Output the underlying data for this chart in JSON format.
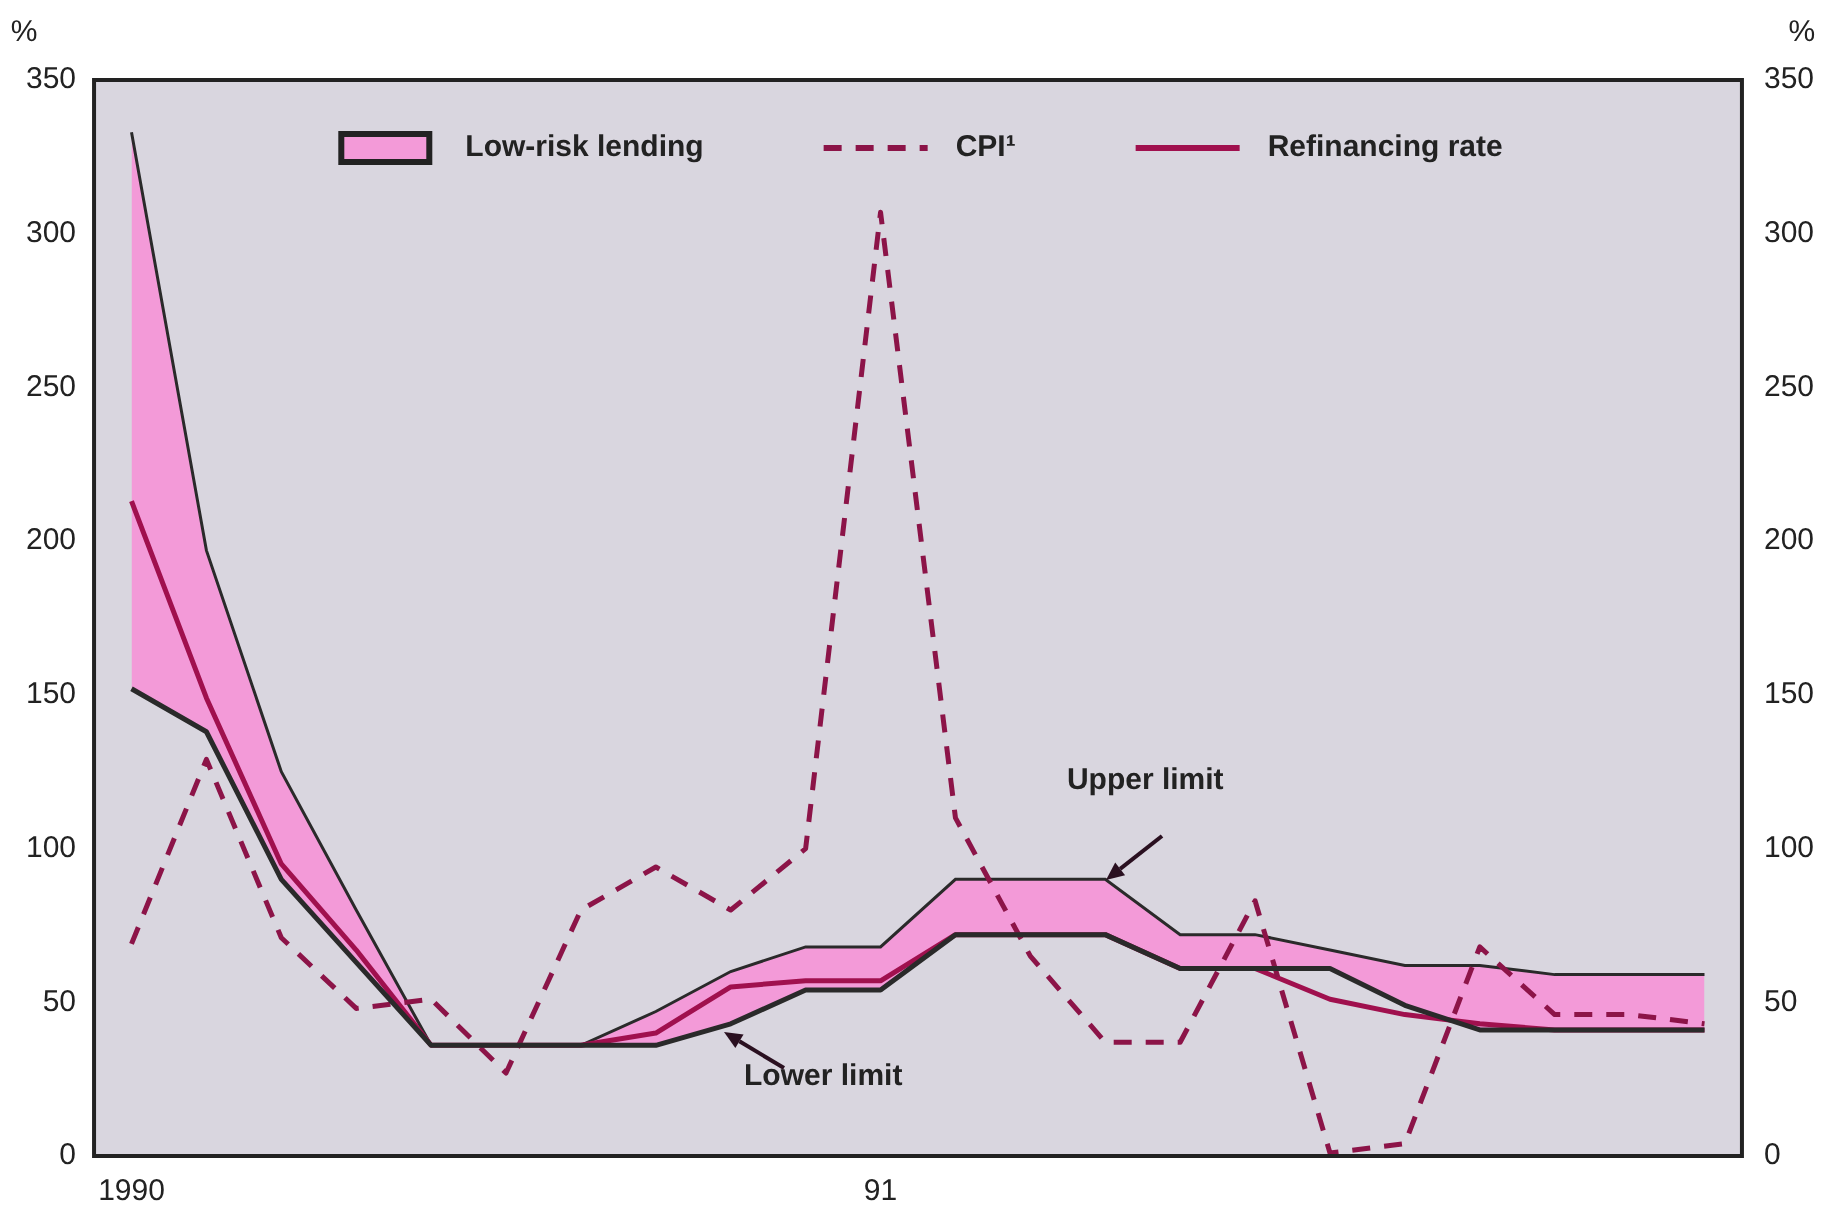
{
  "chart_data": {
    "type": "line",
    "categories": [
      "1990",
      null,
      null,
      null,
      null,
      null,
      null,
      null,
      null,
      null,
      "91",
      null,
      null,
      null,
      null,
      null,
      null,
      null,
      null,
      null,
      null,
      null
    ],
    "series": [
      {
        "name": "Low-risk lending",
        "type": "area",
        "color": "#f39ad8",
        "values": [
          333,
          197,
          125,
          80,
          36,
          36,
          36,
          47,
          60,
          68,
          68,
          90,
          90,
          90,
          72,
          72,
          67,
          62,
          62,
          59,
          59,
          59
        ]
      },
      {
        "type": "line",
        "line_style": "solid",
        "color": "#2a2a2a",
        "values": [
          152,
          138,
          90,
          63,
          36,
          36,
          36,
          36,
          43,
          54,
          54,
          72,
          72,
          72,
          61,
          61,
          61,
          49,
          41,
          41,
          41,
          41
        ]
      },
      {
        "name": "CPI¹",
        "type": "line",
        "line_style": "dashed",
        "color": "#8c1448",
        "values": [
          69,
          129,
          71,
          48,
          51,
          27,
          80,
          94,
          80,
          100,
          307,
          110,
          65,
          37,
          37,
          83,
          1,
          4,
          68,
          46,
          46,
          43
        ]
      },
      {
        "name": "Refinancing rate",
        "type": "line",
        "line_style": "solid",
        "color": "#a0104e",
        "values": [
          213,
          149,
          95,
          67,
          36,
          36,
          36,
          40,
          55,
          57,
          57,
          72,
          72,
          72,
          61,
          61,
          51,
          46,
          43,
          41,
          41,
          41
        ]
      }
    ],
    "ylabel": "%",
    "y2label": "%",
    "ylim": [
      0,
      350
    ],
    "yticks": [
      0,
      50,
      100,
      150,
      200,
      250,
      300,
      350
    ],
    "y2lim": [
      0,
      350
    ],
    "y2ticks": [
      0,
      50,
      100,
      150,
      200,
      250,
      300,
      350
    ],
    "annotations": [
      "Upper limit",
      "Lower limit"
    ],
    "grid": false,
    "legend": "top",
    "marker": "none"
  }
}
